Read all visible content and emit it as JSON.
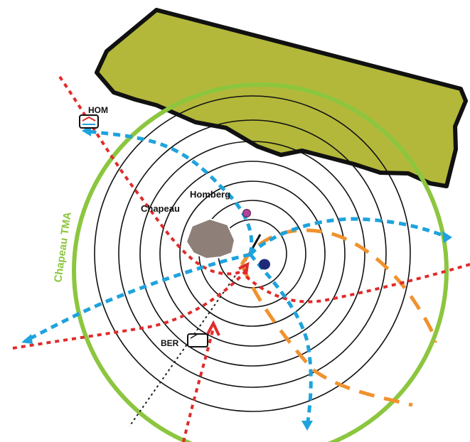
{
  "map": {
    "tma_label": "Chapeau TMA",
    "labels": {
      "hom": "HOM",
      "ber": "BER",
      "homberg": "Homberg",
      "chapeau": "Chapeau"
    },
    "colors": {
      "terrain": "#b3b83b",
      "terrain_outline": "#111111",
      "tma_boundary": "#8cc63f",
      "rings": "#111111",
      "inbound_route": "#e02b2b",
      "outbound_route": "#1ea3dd",
      "approach_route": "#f0922e",
      "city": "#8e7f79",
      "homberg_point": "#b0449a",
      "airport": "#1f2a78",
      "extended_centerline": "#222222"
    },
    "icons": {
      "hom_beacon": "navaid-beacon-icon",
      "ber_beacon": "navaid-beacon-icon",
      "homberg_point": "reporting-point-icon",
      "airport": "airport-icon"
    }
  }
}
